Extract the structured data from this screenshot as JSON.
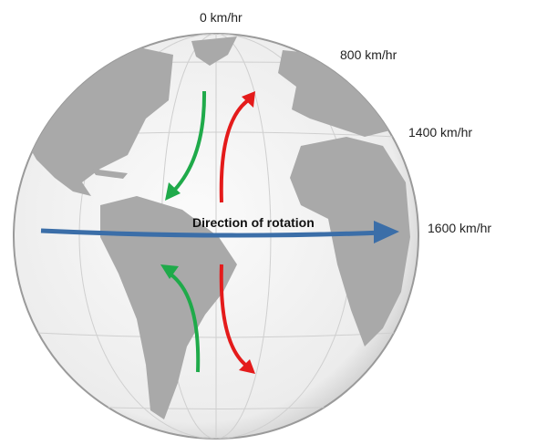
{
  "speed_labels": {
    "pole": "0 km/hr",
    "high_lat": "800 km/hr",
    "mid_lat": "1400 km/hr",
    "equator": "1600 km/hr"
  },
  "rotation_label": "Direction of rotation",
  "colors": {
    "globe": "#f4f4f4",
    "land": "#a9a9a9",
    "rotation_arrow": "#3b6ea8",
    "green_arrow": "#1faa4a",
    "red_arrow": "#e41b1b"
  }
}
